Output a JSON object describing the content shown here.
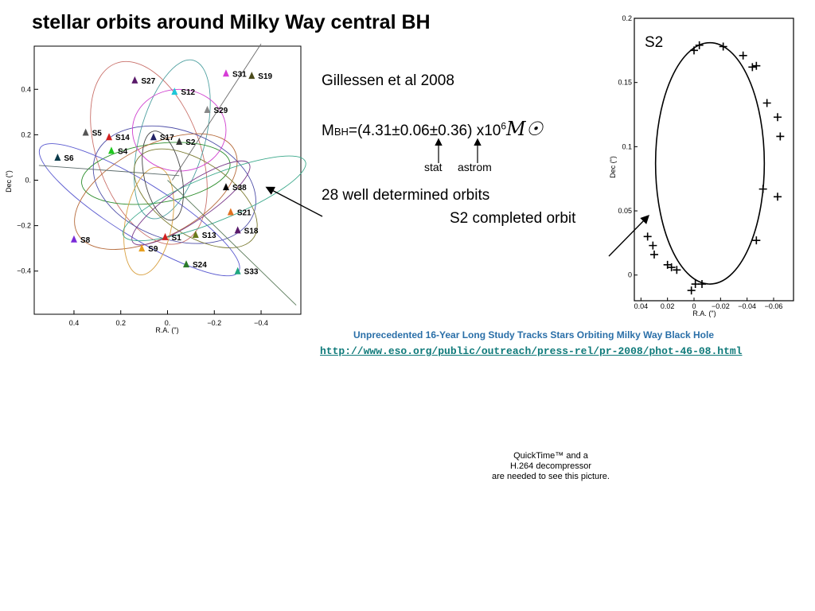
{
  "title": "stellar orbits around Milky Way central BH",
  "reference": "Gillessen et al 2008",
  "mass": {
    "prefix": "M",
    "sub": "BH",
    "value": "=(4.31±0.06±0.36) x10",
    "exponent": "6",
    "unit_symbol": "M☉"
  },
  "error_labels": {
    "stat": "stat",
    "astrom": "astrom"
  },
  "orbits_note": "28 well determined orbits",
  "s2_note": "S2 completed orbit",
  "news": {
    "headline": "Unprecedented 16-Year Long Study Tracks Stars Orbiting Milky Way Black Hole",
    "url": "http://www.eso.org/public/outreach/press-rel/pr-2008/phot-46-08.html"
  },
  "quicktime_notice": [
    "QuickTime™ and a",
    "H.264 decompressor",
    "are needed to see this picture."
  ],
  "chart_data": [
    {
      "type": "scatter",
      "title": "",
      "xlabel": "R.A. (\")",
      "ylabel": "Dec (\")",
      "xlim": [
        0.57,
        -0.57
      ],
      "ylim": [
        -0.59,
        0.59
      ],
      "xticks": [
        "0.4",
        "0.2",
        "0.",
        "−0.2",
        "−0.4"
      ],
      "yticks": [
        "0.4",
        "0.2",
        "0.",
        "−0.2",
        "−0.4"
      ],
      "stars": [
        {
          "name": "S31",
          "x": -0.25,
          "y": 0.47,
          "color": "#d63bd6"
        },
        {
          "name": "S19",
          "x": -0.36,
          "y": 0.46,
          "color": "#4a4a1a"
        },
        {
          "name": "S27",
          "x": 0.14,
          "y": 0.44,
          "color": "#5a1a6a"
        },
        {
          "name": "S12",
          "x": -0.03,
          "y": 0.39,
          "color": "#1fc8d8"
        },
        {
          "name": "S29",
          "x": -0.17,
          "y": 0.31,
          "color": "#888888"
        },
        {
          "name": "S5",
          "x": 0.35,
          "y": 0.21,
          "color": "#555555"
        },
        {
          "name": "S14",
          "x": 0.25,
          "y": 0.19,
          "color": "#d02020"
        },
        {
          "name": "S17",
          "x": 0.06,
          "y": 0.19,
          "color": "#222266"
        },
        {
          "name": "S2",
          "x": -0.05,
          "y": 0.17,
          "color": "#333333"
        },
        {
          "name": "S6",
          "x": 0.47,
          "y": 0.1,
          "color": "#0a3a4a"
        },
        {
          "name": "S4",
          "x": 0.24,
          "y": 0.13,
          "color": "#1fc81f"
        },
        {
          "name": "S38",
          "x": -0.25,
          "y": -0.03,
          "color": "#000000"
        },
        {
          "name": "S21",
          "x": -0.27,
          "y": -0.14,
          "color": "#e07020"
        },
        {
          "name": "S18",
          "x": -0.3,
          "y": -0.22,
          "color": "#5a1a6a"
        },
        {
          "name": "S13",
          "x": -0.12,
          "y": -0.24,
          "color": "#6a7a1a"
        },
        {
          "name": "S8",
          "x": 0.4,
          "y": -0.26,
          "color": "#7a2ad8"
        },
        {
          "name": "S1",
          "x": 0.01,
          "y": -0.25,
          "color": "#d02020"
        },
        {
          "name": "S9",
          "x": 0.11,
          "y": -0.3,
          "color": "#e8a020"
        },
        {
          "name": "S24",
          "x": -0.08,
          "y": -0.37,
          "color": "#2a7a2a"
        },
        {
          "name": "S33",
          "x": -0.3,
          "y": -0.4,
          "color": "#20a880"
        }
      ],
      "orbits": [
        {
          "cx": 0.08,
          "cy": 0.12,
          "rx": 0.22,
          "ry": 0.42,
          "rot": -20,
          "color": "#c9706a"
        },
        {
          "cx": -0.02,
          "cy": 0.18,
          "rx": 0.14,
          "ry": 0.36,
          "rot": 15,
          "color": "#4ea0a0"
        },
        {
          "cx": 0.05,
          "cy": 0.03,
          "rx": 0.32,
          "ry": 0.13,
          "rot": -8,
          "color": "#2f8f2f"
        },
        {
          "cx": -0.03,
          "cy": -0.02,
          "rx": 0.36,
          "ry": 0.24,
          "rot": 20,
          "color": "#4f4fa8"
        },
        {
          "cx": 0.12,
          "cy": -0.13,
          "rx": 0.5,
          "ry": 0.12,
          "rot": 32,
          "color": "#5a5ad0"
        },
        {
          "cx": 0.05,
          "cy": -0.05,
          "rx": 0.38,
          "ry": 0.2,
          "rot": -28,
          "color": "#b56a3a"
        },
        {
          "cx": -0.12,
          "cy": -0.08,
          "rx": 0.3,
          "ry": 0.16,
          "rot": 34,
          "color": "#7a7a30"
        },
        {
          "cx": -0.05,
          "cy": 0.22,
          "rx": 0.2,
          "ry": 0.18,
          "rot": 0,
          "color": "#cf3fcf"
        },
        {
          "cx": 0.08,
          "cy": -0.18,
          "rx": 0.1,
          "ry": 0.24,
          "rot": 10,
          "color": "#d8a040"
        },
        {
          "cx": -0.1,
          "cy": -0.1,
          "rx": 0.3,
          "ry": 0.08,
          "rot": -34,
          "color": "#7a3a8a"
        },
        {
          "cx": 0.02,
          "cy": 0.02,
          "rx": 0.08,
          "ry": 0.2,
          "rot": -12,
          "color": "#444444"
        },
        {
          "cx": -0.2,
          "cy": -0.08,
          "rx": 0.42,
          "ry": 0.1,
          "rot": -22,
          "color": "#3aa88a"
        }
      ]
    },
    {
      "type": "scatter",
      "title": "S2",
      "xlabel": "R.A. (\")",
      "ylabel": "Dec (\")",
      "xlim": [
        0.045,
        -0.075
      ],
      "ylim": [
        -0.02,
        0.2
      ],
      "xticks": [
        "0.04",
        "0.02",
        "0",
        "−0.02",
        "−0.04",
        "−0.06"
      ],
      "yticks": [
        "0.2",
        "0.15",
        "0.1",
        "0.05",
        "0"
      ],
      "points": [
        {
          "x": -0.004,
          "y": 0.179
        },
        {
          "x": -0.022,
          "y": 0.178
        },
        {
          "x": -0.037,
          "y": 0.171
        },
        {
          "x": -0.044,
          "y": 0.162
        },
        {
          "x": -0.047,
          "y": 0.163
        },
        {
          "x": -0.055,
          "y": 0.134
        },
        {
          "x": -0.063,
          "y": 0.123
        },
        {
          "x": -0.065,
          "y": 0.108
        },
        {
          "x": -0.052,
          "y": 0.067
        },
        {
          "x": -0.063,
          "y": 0.061
        },
        {
          "x": -0.047,
          "y": 0.027
        },
        {
          "x": 0.035,
          "y": 0.03
        },
        {
          "x": 0.031,
          "y": 0.023
        },
        {
          "x": 0.03,
          "y": 0.016
        },
        {
          "x": 0.02,
          "y": 0.008
        },
        {
          "x": 0.017,
          "y": 0.006
        },
        {
          "x": 0.013,
          "y": 0.004
        },
        {
          "x": -0.006,
          "y": -0.007
        },
        {
          "x": -0.001,
          "y": -0.007
        },
        {
          "x": 0.002,
          "y": -0.012
        },
        {
          "x": 0.0,
          "y": 0.175
        }
      ]
    }
  ]
}
